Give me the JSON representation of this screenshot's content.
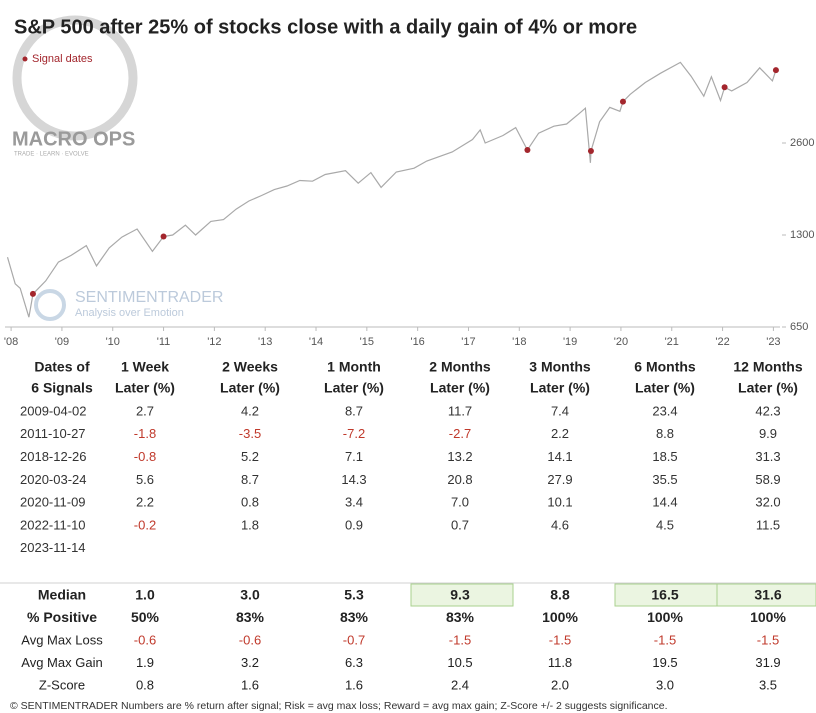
{
  "chart_data": {
    "type": "line",
    "title": "S&P 500 after 25% of stocks close with a daily gain of 4% or more",
    "log_scale": true,
    "color": "#a9a9a9",
    "x": [
      2008.75,
      2008.9,
      2009.0,
      2009.17,
      2009.25,
      2009.5,
      2009.75,
      2010.0,
      2010.3,
      2010.5,
      2010.75,
      2011.0,
      2011.3,
      2011.6,
      2011.82,
      2012.0,
      2012.25,
      2012.45,
      2012.75,
      2013.0,
      2013.25,
      2013.5,
      2013.75,
      2014.0,
      2014.25,
      2014.5,
      2014.75,
      2015.0,
      2015.4,
      2015.65,
      2015.9,
      2016.1,
      2016.4,
      2016.75,
      2017.0,
      2017.5,
      2017.9,
      2018.05,
      2018.15,
      2018.5,
      2018.75,
      2018.98,
      2019.2,
      2019.5,
      2019.75,
      2020.0,
      2020.12,
      2020.22,
      2020.23,
      2020.4,
      2020.6,
      2020.8,
      2020.86,
      2021.0,
      2021.3,
      2021.6,
      2021.99,
      2022.2,
      2022.45,
      2022.6,
      2022.78,
      2022.86,
      2023.0,
      2023.3,
      2023.55,
      2023.8,
      2023.87
    ],
    "values": [
      1100,
      900,
      870,
      700,
      834,
      920,
      1060,
      1115,
      1200,
      1030,
      1180,
      1280,
      1360,
      1150,
      1285,
      1300,
      1400,
      1300,
      1440,
      1460,
      1580,
      1680,
      1750,
      1830,
      1880,
      1960,
      1950,
      2050,
      2110,
      1920,
      2080,
      1860,
      2090,
      2150,
      2270,
      2430,
      2670,
      2870,
      2600,
      2750,
      2920,
      2467,
      2800,
      2950,
      3000,
      3250,
      3380,
      2240,
      2447,
      3050,
      3400,
      3300,
      3550,
      3750,
      4100,
      4400,
      4770,
      4300,
      3700,
      4280,
      3580,
      3956,
      3850,
      4100,
      4580,
      4150,
      4500
    ],
    "markers": {
      "name": "Signal dates",
      "color": "#a3262d",
      "x": [
        2009.25,
        2011.82,
        2018.98,
        2020.23,
        2020.86,
        2022.86,
        2023.87
      ],
      "values": [
        834,
        1285,
        2467,
        2447,
        3550,
        3956,
        4500
      ]
    },
    "xlim": [
      2008.7,
      2023.95
    ],
    "xticks": [
      {
        "value": 2008.82,
        "label": "'08"
      },
      {
        "value": 2009.82,
        "label": "'09"
      },
      {
        "value": 2010.82,
        "label": "'10"
      },
      {
        "value": 2011.82,
        "label": "'11"
      },
      {
        "value": 2012.82,
        "label": "'12"
      },
      {
        "value": 2013.82,
        "label": "'13"
      },
      {
        "value": 2014.82,
        "label": "'14"
      },
      {
        "value": 2015.82,
        "label": "'15"
      },
      {
        "value": 2016.82,
        "label": "'16"
      },
      {
        "value": 2017.82,
        "label": "'17"
      },
      {
        "value": 2018.82,
        "label": "'18"
      },
      {
        "value": 2019.82,
        "label": "'19"
      },
      {
        "value": 2020.82,
        "label": "'20"
      },
      {
        "value": 2021.82,
        "label": "'21"
      },
      {
        "value": 2022.82,
        "label": "'22"
      },
      {
        "value": 2023.82,
        "label": "'23"
      }
    ],
    "ylim": [
      650,
      5440
    ],
    "yticks": [
      650,
      1300,
      2600
    ],
    "watermarks": [
      "MACRO OPS",
      "TRADE · LEARN · EVOLVE",
      "SENTIMENTRADER",
      "Analysis over Emotion"
    ]
  },
  "table": {
    "header": [
      [
        "Dates of",
        "6 Signals"
      ],
      [
        "1 Week",
        "Later (%)"
      ],
      [
        "2 Weeks",
        "Later (%)"
      ],
      [
        "1 Month",
        "Later (%)"
      ],
      [
        "2 Months",
        "Later (%)"
      ],
      [
        "3 Months",
        "Later (%)"
      ],
      [
        "6 Months",
        "Later (%)"
      ],
      [
        "12 Months",
        "Later (%)"
      ]
    ],
    "rows": [
      [
        "2009-04-02",
        "2.7",
        "4.2",
        "8.7",
        "11.7",
        "7.4",
        "23.4",
        "42.3"
      ],
      [
        "2011-10-27",
        "-1.8",
        "-3.5",
        "-7.2",
        "-2.7",
        "2.2",
        "8.8",
        "9.9"
      ],
      [
        "2018-12-26",
        "-0.8",
        "5.2",
        "7.1",
        "13.2",
        "14.1",
        "18.5",
        "31.3"
      ],
      [
        "2020-03-24",
        "5.6",
        "8.7",
        "14.3",
        "20.8",
        "27.9",
        "35.5",
        "58.9"
      ],
      [
        "2020-11-09",
        "2.2",
        "0.8",
        "3.4",
        "7.0",
        "10.1",
        "14.4",
        "32.0"
      ],
      [
        "2022-11-10",
        "-0.2",
        "1.8",
        "0.9",
        "0.7",
        "4.6",
        "4.5",
        "11.5"
      ],
      [
        "2023-11-14"
      ]
    ],
    "summary": [
      [
        "Median",
        "1.0",
        "3.0",
        "5.3",
        "9.3",
        "8.8",
        "16.5",
        "31.6"
      ],
      [
        "% Positive",
        "50%",
        "83%",
        "83%",
        "83%",
        "100%",
        "100%",
        "100%"
      ],
      [
        "Avg Max Loss",
        "-0.6",
        "-0.6",
        "-0.7",
        "-1.5",
        "-1.5",
        "-1.5",
        "-1.5"
      ],
      [
        "Avg Max Gain",
        "1.9",
        "3.2",
        "6.3",
        "10.5",
        "11.8",
        "19.5",
        "31.9"
      ],
      [
        "Z-Score",
        "0.8",
        "1.6",
        "1.6",
        "2.4",
        "2.0",
        "3.0",
        "3.5"
      ]
    ],
    "highlighted_median_columns": [
      4,
      6,
      7
    ],
    "negative_color": "#c0392b"
  },
  "footer": "© SENTIMENTRADER  Numbers are % return after signal; Risk = avg max loss; Reward = avg max gain; Z-Score +/- 2 suggests significance."
}
